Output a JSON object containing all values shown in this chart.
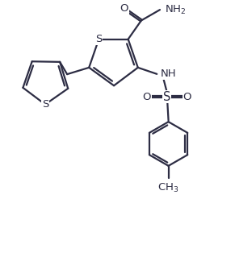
{
  "bg_color": "#ffffff",
  "line_color": "#2d2d44",
  "line_width": 1.6,
  "font_size": 9.5,
  "figsize": [
    2.91,
    3.14
  ],
  "dpi": 100,
  "xlim": [
    0,
    8.5
  ],
  "ylim": [
    0,
    9.2
  ]
}
